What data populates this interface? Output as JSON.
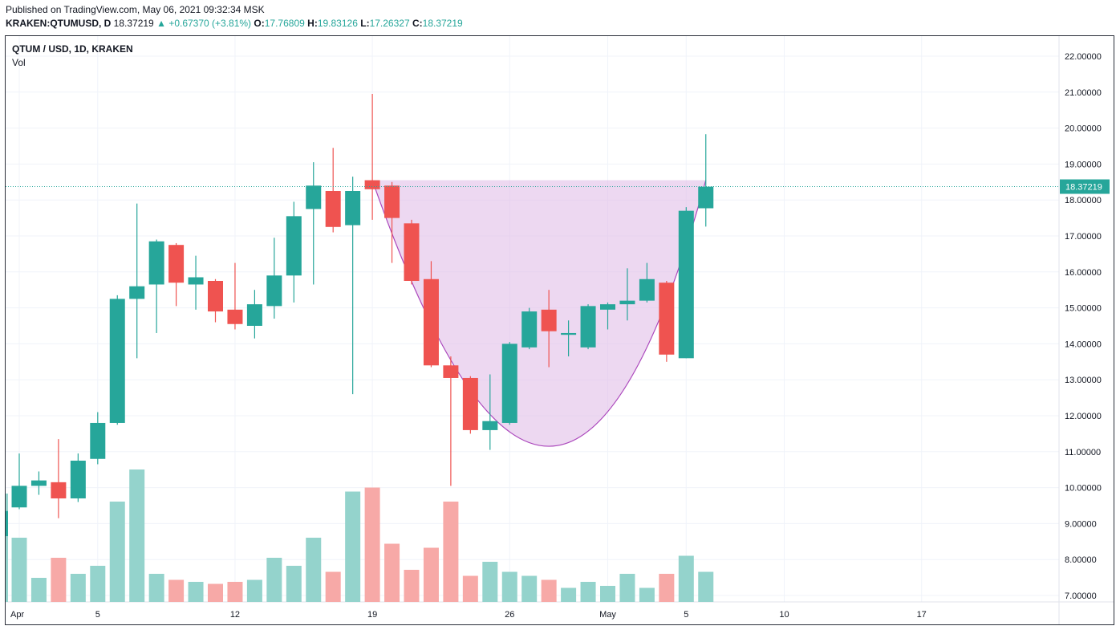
{
  "header": {
    "published": "Published on TradingView.com, May 06, 2021 09:32:34 MSK",
    "symbol": "KRAKEN:QTUMUSD, D",
    "last": "18.37219",
    "change_arrow": "▲",
    "change": "+0.67370 (+3.81%)",
    "o_label": "O:",
    "o_value": "17.76809",
    "h_label": "H:",
    "h_value": "19.83126",
    "l_label": "L:",
    "l_value": "17.26327",
    "c_label": "C:",
    "c_value": "18.37219"
  },
  "legend": {
    "title": "QTUM / USD, 1D, KRAKEN",
    "volume_label": "Vol"
  },
  "colors": {
    "up": "#26a69a",
    "down": "#ef5350",
    "up_volume": "#94d3cc",
    "down_volume": "#f7a9a7",
    "pattern_fill": "#e1bee7",
    "pattern_stroke": "#ab47bc",
    "grid": "#f0f3fa"
  },
  "chart_data": {
    "type": "candlestick",
    "title": "QTUM / USD, 1D, KRAKEN",
    "price_axis": {
      "ticks": [
        "22.00000",
        "21.00000",
        "20.00000",
        "19.00000",
        "18.00000",
        "17.00000",
        "16.00000",
        "15.00000",
        "14.00000",
        "13.00000",
        "12.00000",
        "11.00000",
        "10.00000",
        "9.00000",
        "8.00000",
        "7.00000"
      ],
      "range": [
        6.8,
        22.3
      ]
    },
    "time_axis": {
      "ticks": [
        {
          "label": "Apr",
          "day": 1
        },
        {
          "label": "5",
          "day": 5
        },
        {
          "label": "12",
          "day": 12
        },
        {
          "label": "19",
          "day": 19
        },
        {
          "label": "26",
          "day": 26
        },
        {
          "label": "May",
          "day": 31
        },
        {
          "label": "5",
          "day": 35
        },
        {
          "label": "10",
          "day": 40
        },
        {
          "label": "17",
          "day": 47
        }
      ]
    },
    "last_price": 18.37219,
    "last_price_label": "18.37219",
    "candles": [
      {
        "day": 1,
        "o": 9.45,
        "h": 10.95,
        "l": 9.4,
        "c": 10.05,
        "v": 1.6
      },
      {
        "day": 2,
        "o": 10.05,
        "h": 10.45,
        "l": 9.8,
        "c": 10.2,
        "v": 0.6
      },
      {
        "day": 3,
        "o": 10.15,
        "h": 11.35,
        "l": 9.15,
        "c": 9.7,
        "v": 1.1
      },
      {
        "day": 4,
        "o": 9.7,
        "h": 10.95,
        "l": 9.6,
        "c": 10.75,
        "v": 0.7
      },
      {
        "day": 5,
        "o": 10.8,
        "h": 12.1,
        "l": 10.65,
        "c": 11.8,
        "v": 0.9
      },
      {
        "day": 6,
        "o": 11.8,
        "h": 15.35,
        "l": 11.75,
        "c": 15.25,
        "v": 2.5
      },
      {
        "day": 7,
        "o": 15.25,
        "h": 17.9,
        "l": 13.6,
        "c": 15.6,
        "v": 3.3
      },
      {
        "day": 8,
        "o": 15.65,
        "h": 16.9,
        "l": 14.3,
        "c": 16.85,
        "v": 0.7
      },
      {
        "day": 9,
        "o": 16.75,
        "h": 16.8,
        "l": 15.05,
        "c": 15.7,
        "v": 0.55
      },
      {
        "day": 10,
        "o": 15.65,
        "h": 16.45,
        "l": 14.95,
        "c": 15.85,
        "v": 0.5
      },
      {
        "day": 11,
        "o": 15.75,
        "h": 15.8,
        "l": 14.6,
        "c": 14.9,
        "v": 0.45
      },
      {
        "day": 12,
        "o": 14.95,
        "h": 16.25,
        "l": 14.4,
        "c": 14.55,
        "v": 0.5
      },
      {
        "day": 13,
        "o": 14.5,
        "h": 15.5,
        "l": 14.15,
        "c": 15.1,
        "v": 0.55
      },
      {
        "day": 14,
        "o": 15.05,
        "h": 16.95,
        "l": 14.7,
        "c": 15.9,
        "v": 1.1
      },
      {
        "day": 15,
        "o": 15.9,
        "h": 17.95,
        "l": 15.15,
        "c": 17.55,
        "v": 0.9
      },
      {
        "day": 16,
        "o": 17.75,
        "h": 19.05,
        "l": 15.65,
        "c": 18.4,
        "v": 1.6
      },
      {
        "day": 17,
        "o": 18.25,
        "h": 19.45,
        "l": 17.1,
        "c": 17.25,
        "v": 0.75
      },
      {
        "day": 18,
        "o": 17.3,
        "h": 18.65,
        "l": 12.6,
        "c": 18.25,
        "v": 2.75
      },
      {
        "day": 19,
        "o": 18.55,
        "h": 20.95,
        "l": 17.45,
        "c": 18.3,
        "v": 2.85
      },
      {
        "day": 20,
        "o": 18.4,
        "h": 18.5,
        "l": 16.25,
        "c": 17.5,
        "v": 1.45
      },
      {
        "day": 21,
        "o": 17.35,
        "h": 17.45,
        "l": 15.65,
        "c": 15.75,
        "v": 0.8
      },
      {
        "day": 22,
        "o": 15.8,
        "h": 16.3,
        "l": 13.35,
        "c": 13.4,
        "v": 1.35
      },
      {
        "day": 23,
        "o": 13.4,
        "h": 13.65,
        "l": 10.05,
        "c": 13.05,
        "v": 2.5
      },
      {
        "day": 24,
        "o": 13.05,
        "h": 13.1,
        "l": 11.5,
        "c": 11.6,
        "v": 0.65
      },
      {
        "day": 25,
        "o": 11.6,
        "h": 13.15,
        "l": 11.05,
        "c": 11.85,
        "v": 1.0
      },
      {
        "day": 26,
        "o": 11.8,
        "h": 14.05,
        "l": 11.75,
        "c": 14.0,
        "v": 0.75
      },
      {
        "day": 27,
        "o": 13.9,
        "h": 15.0,
        "l": 13.85,
        "c": 14.9,
        "v": 0.65
      },
      {
        "day": 28,
        "o": 14.95,
        "h": 15.5,
        "l": 13.35,
        "c": 14.35,
        "v": 0.55
      },
      {
        "day": 29,
        "o": 14.25,
        "h": 14.65,
        "l": 13.65,
        "c": 14.3,
        "v": 0.35
      },
      {
        "day": 30,
        "o": 13.9,
        "h": 15.1,
        "l": 13.85,
        "c": 15.05,
        "v": 0.5
      },
      {
        "day": 31,
        "o": 14.95,
        "h": 15.15,
        "l": 14.4,
        "c": 15.1,
        "v": 0.4
      },
      {
        "day": 32,
        "o": 15.1,
        "h": 16.1,
        "l": 14.65,
        "c": 15.2,
        "v": 0.7
      },
      {
        "day": 33,
        "o": 15.2,
        "h": 16.25,
        "l": 15.15,
        "c": 15.8,
        "v": 0.35
      },
      {
        "day": 34,
        "o": 15.7,
        "h": 15.75,
        "l": 13.5,
        "c": 13.7,
        "v": 0.7
      },
      {
        "day": 35,
        "o": 13.6,
        "h": 17.8,
        "l": 13.6,
        "c": 17.7,
        "v": 1.15
      },
      {
        "day": 36,
        "o": 17.77,
        "h": 19.83,
        "l": 17.26,
        "c": 18.37,
        "v": 0.75
      }
    ],
    "pattern": {
      "name": "cup",
      "rim_start": {
        "day": 19,
        "price": 18.55
      },
      "rim_end": {
        "day": 36,
        "price": 18.55
      },
      "bottom": {
        "day": 28,
        "price": 11.15
      }
    }
  }
}
